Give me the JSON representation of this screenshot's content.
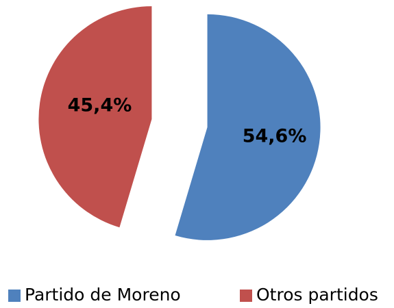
{
  "chart_data": {
    "type": "pie",
    "categories": [
      "Partido de Moreno",
      "Otros partidos"
    ],
    "values": [
      54.6,
      45.4
    ],
    "value_labels": [
      "54,6%",
      "45,4%"
    ],
    "colors": [
      "#4f81bd",
      "#c0504d"
    ],
    "legend": "bottom"
  }
}
